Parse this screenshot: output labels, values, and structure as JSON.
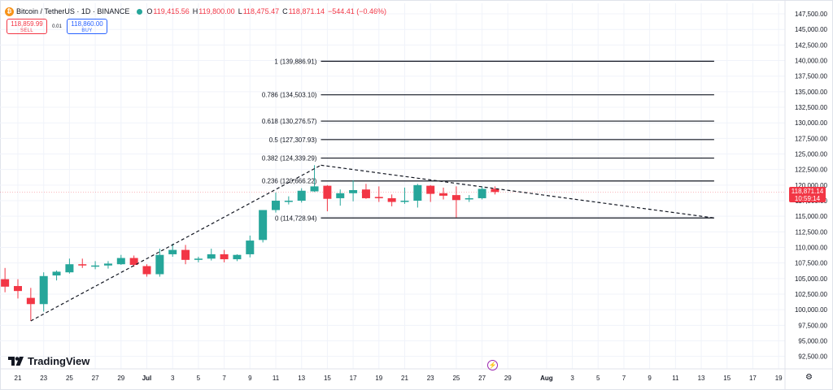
{
  "header": {
    "symbol": "Bitcoin / TetherUS · 1D · BINANCE",
    "open_label": "O",
    "open": "119,415.56",
    "high_label": "H",
    "high": "119,800.00",
    "low_label": "L",
    "low": "118,475.47",
    "close_label": "C",
    "close": "118,871.14",
    "change": "−544.41 (−0.46%)"
  },
  "trade": {
    "sell_price": "118,859.99",
    "sell_label": "SELL",
    "spread": "0.01",
    "buy_price": "118,860.00",
    "buy_label": "BUY"
  },
  "brand": {
    "name": "TradingView"
  },
  "price_badge": {
    "price": "118,871.14",
    "countdown": "10:59:14"
  },
  "icons": {
    "logo": "tradingview-logo-icon",
    "event": "lightning-icon",
    "settings": "gear-icon",
    "coin": "bitcoin-icon"
  },
  "colors": {
    "up": "#26a69a",
    "down": "#f23645",
    "fib": "#131722",
    "grid": "#f0f3fa"
  },
  "chart_data": {
    "type": "candlestick",
    "y_ticks": [
      "147,500.00",
      "145,000.00",
      "142,500.00",
      "140,000.00",
      "137,500.00",
      "135,000.00",
      "132,500.00",
      "130,000.00",
      "127,500.00",
      "125,000.00",
      "122,500.00",
      "120,000.00",
      "117,500.00",
      "115,000.00",
      "112,500.00",
      "110,000.00",
      "107,500.00",
      "105,000.00",
      "102,500.00",
      "100,000.00",
      "97,500.00",
      "95,000.00",
      "92,500.00"
    ],
    "ylim": [
      90500,
      149200
    ],
    "x_ticks": [
      {
        "day": 0,
        "label": "21"
      },
      {
        "day": 2,
        "label": "23"
      },
      {
        "day": 4,
        "label": "25"
      },
      {
        "day": 6,
        "label": "27"
      },
      {
        "day": 8,
        "label": "29"
      },
      {
        "day": 10,
        "label": "Jul",
        "bold": true
      },
      {
        "day": 12,
        "label": "3"
      },
      {
        "day": 14,
        "label": "5"
      },
      {
        "day": 16,
        "label": "7"
      },
      {
        "day": 18,
        "label": "9"
      },
      {
        "day": 20,
        "label": "11"
      },
      {
        "day": 22,
        "label": "13"
      },
      {
        "day": 24,
        "label": "15"
      },
      {
        "day": 26,
        "label": "17"
      },
      {
        "day": 28,
        "label": "19"
      },
      {
        "day": 30,
        "label": "21"
      },
      {
        "day": 32,
        "label": "23"
      },
      {
        "day": 34,
        "label": "25"
      },
      {
        "day": 36,
        "label": "27"
      },
      {
        "day": 38,
        "label": "29"
      },
      {
        "day": 41,
        "label": "Aug",
        "bold": true
      },
      {
        "day": 43,
        "label": "3"
      },
      {
        "day": 45,
        "label": "5"
      },
      {
        "day": 47,
        "label": "7"
      },
      {
        "day": 49,
        "label": "9"
      },
      {
        "day": 51,
        "label": "11"
      },
      {
        "day": 53,
        "label": "13"
      },
      {
        "day": 55,
        "label": "15"
      },
      {
        "day": 57,
        "label": "17"
      },
      {
        "day": 59,
        "label": "19"
      }
    ],
    "candles": [
      {
        "day": -1,
        "o": 104900,
        "h": 106700,
        "l": 102800,
        "c": 103700
      },
      {
        "day": 0,
        "o": 103800,
        "h": 104900,
        "l": 101800,
        "c": 103000
      },
      {
        "day": 1,
        "o": 101900,
        "h": 103500,
        "l": 98200,
        "c": 100900
      },
      {
        "day": 2,
        "o": 100900,
        "h": 106000,
        "l": 99700,
        "c": 105400
      },
      {
        "day": 3,
        "o": 105500,
        "h": 106300,
        "l": 104700,
        "c": 106100
      },
      {
        "day": 4,
        "o": 106000,
        "h": 108200,
        "l": 105800,
        "c": 107300
      },
      {
        "day": 5,
        "o": 107300,
        "h": 108200,
        "l": 106700,
        "c": 107100
      },
      {
        "day": 6,
        "o": 107000,
        "h": 107800,
        "l": 106500,
        "c": 107100
      },
      {
        "day": 7,
        "o": 107100,
        "h": 107800,
        "l": 106600,
        "c": 107400
      },
      {
        "day": 8,
        "o": 107300,
        "h": 108800,
        "l": 107200,
        "c": 108300
      },
      {
        "day": 9,
        "o": 108300,
        "h": 108700,
        "l": 106900,
        "c": 107200
      },
      {
        "day": 10,
        "o": 107000,
        "h": 107300,
        "l": 105300,
        "c": 105700
      },
      {
        "day": 11,
        "o": 105700,
        "h": 109800,
        "l": 105300,
        "c": 108800
      },
      {
        "day": 12,
        "o": 108900,
        "h": 110600,
        "l": 108500,
        "c": 109600
      },
      {
        "day": 13,
        "o": 109600,
        "h": 110400,
        "l": 107300,
        "c": 108000
      },
      {
        "day": 14,
        "o": 108000,
        "h": 108500,
        "l": 107600,
        "c": 108200
      },
      {
        "day": 15,
        "o": 108200,
        "h": 109800,
        "l": 107900,
        "c": 108900
      },
      {
        "day": 16,
        "o": 108900,
        "h": 109600,
        "l": 107600,
        "c": 108100
      },
      {
        "day": 17,
        "o": 108100,
        "h": 108900,
        "l": 107800,
        "c": 108800
      },
      {
        "day": 18,
        "o": 108900,
        "h": 111900,
        "l": 108400,
        "c": 111100
      },
      {
        "day": 19,
        "o": 111200,
        "h": 116000,
        "l": 110800,
        "c": 116000
      },
      {
        "day": 20,
        "o": 116000,
        "h": 118800,
        "l": 115600,
        "c": 117500
      },
      {
        "day": 21,
        "o": 117500,
        "h": 118200,
        "l": 116900,
        "c": 117500
      },
      {
        "day": 22,
        "o": 117500,
        "h": 119500,
        "l": 117200,
        "c": 119100
      },
      {
        "day": 23,
        "o": 119000,
        "h": 123200,
        "l": 118900,
        "c": 119800
      },
      {
        "day": 24,
        "o": 119900,
        "h": 120000,
        "l": 115800,
        "c": 117800
      },
      {
        "day": 25,
        "o": 117900,
        "h": 119300,
        "l": 116700,
        "c": 118700
      },
      {
        "day": 26,
        "o": 118700,
        "h": 120800,
        "l": 117400,
        "c": 119200
      },
      {
        "day": 27,
        "o": 119300,
        "h": 120200,
        "l": 117800,
        "c": 117900
      },
      {
        "day": 28,
        "o": 118100,
        "h": 119800,
        "l": 117300,
        "c": 117900
      },
      {
        "day": 29,
        "o": 117900,
        "h": 118500,
        "l": 116600,
        "c": 117300
      },
      {
        "day": 30,
        "o": 117400,
        "h": 119600,
        "l": 117000,
        "c": 117500
      },
      {
        "day": 31,
        "o": 117500,
        "h": 120200,
        "l": 116400,
        "c": 120000
      },
      {
        "day": 32,
        "o": 119900,
        "h": 120000,
        "l": 117300,
        "c": 118600
      },
      {
        "day": 33,
        "o": 118700,
        "h": 119600,
        "l": 117700,
        "c": 118300
      },
      {
        "day": 34,
        "o": 118400,
        "h": 119800,
        "l": 114800,
        "c": 117600
      },
      {
        "day": 35,
        "o": 117800,
        "h": 118400,
        "l": 117300,
        "c": 117900
      },
      {
        "day": 36,
        "o": 117900,
        "h": 119800,
        "l": 117700,
        "c": 119400
      },
      {
        "day": 37,
        "o": 119400,
        "h": 119800,
        "l": 118500,
        "c": 118900
      }
    ],
    "fib_levels": [
      {
        "ratio": "1",
        "price": 139886.91,
        "label": "1 (139,886.91)"
      },
      {
        "ratio": "0.786",
        "price": 134503.1,
        "label": "0.786 (134,503.10)"
      },
      {
        "ratio": "0.618",
        "price": 130276.57,
        "label": "0.618 (130,276.57)"
      },
      {
        "ratio": "0.5",
        "price": 127307.93,
        "label": "0.5 (127,307.93)"
      },
      {
        "ratio": "0.382",
        "price": 124339.29,
        "label": "0.382 (124,339.29)"
      },
      {
        "ratio": "0.236",
        "price": 120666.22,
        "label": "0.236 (120,666.22)"
      },
      {
        "ratio": "0",
        "price": 114728.94,
        "label": "0 (114,728.94)"
      }
    ],
    "fib_range": {
      "start_day": 23.5,
      "end_day": 54
    },
    "trend_lines": [
      {
        "from": {
          "day": 1,
          "price": 98200
        },
        "to": {
          "day": 23.5,
          "price": 123200
        }
      },
      {
        "from": {
          "day": 23.5,
          "price": 123200
        },
        "to": {
          "day": 54,
          "price": 114728.94
        }
      }
    ],
    "last_price": 118871.14
  }
}
